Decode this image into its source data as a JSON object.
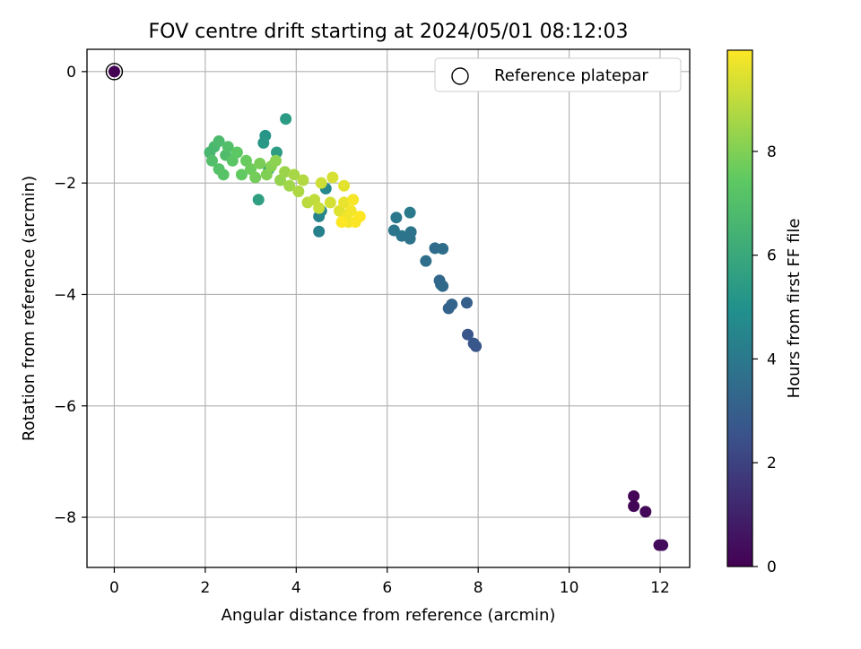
{
  "chart_data": {
    "type": "scatter",
    "title": "FOV centre drift starting at 2024/05/01 08:12:03",
    "xlabel": "Angular distance from reference (arcmin)",
    "ylabel": "Rotation from reference (arcmin)",
    "xlim": [
      -0.6,
      12.65
    ],
    "ylim": [
      -8.9,
      0.4
    ],
    "xticks": [
      0,
      2,
      4,
      6,
      8,
      10,
      12
    ],
    "yticks": [
      0,
      -2,
      -4,
      -6,
      -8
    ],
    "xtick_labels": [
      "0",
      "2",
      "4",
      "6",
      "8",
      "10",
      "12"
    ],
    "ytick_labels": [
      "0",
      "−2",
      "−4",
      "−6",
      "−8"
    ],
    "grid": true,
    "legend": {
      "position": "top-right",
      "entries": [
        {
          "label": "Reference platepar",
          "marker": "hollow-circle"
        }
      ]
    },
    "colorbar": {
      "label": "Hours from first FF file",
      "range": [
        0,
        9.95
      ],
      "ticks": [
        0,
        2,
        4,
        6,
        8
      ],
      "tick_labels": [
        "0",
        "2",
        "4",
        "6",
        "8"
      ],
      "colormap": "viridis",
      "colormap_stops": [
        "#440154",
        "#3b528b",
        "#21918c",
        "#5ec962",
        "#fde725"
      ]
    },
    "reference_point": {
      "x": 0,
      "y": 0,
      "hours": 0
    },
    "series": [
      {
        "points": [
          [
            0,
            0,
            0
          ],
          [
            11.42,
            -7.62,
            0.1
          ],
          [
            11.42,
            -7.8,
            0.15
          ],
          [
            11.68,
            -7.9,
            0.2
          ],
          [
            11.98,
            -8.5,
            0.25
          ],
          [
            12.05,
            -8.5,
            0.3
          ],
          [
            7.77,
            -4.72,
            2.6
          ],
          [
            7.9,
            -4.88,
            2.65
          ],
          [
            7.95,
            -4.93,
            2.7
          ],
          [
            7.75,
            -4.15,
            3.0
          ],
          [
            7.35,
            -4.25,
            3.1
          ],
          [
            7.42,
            -4.18,
            3.15
          ],
          [
            7.15,
            -3.75,
            3.3
          ],
          [
            7.22,
            -3.85,
            3.35
          ],
          [
            7.18,
            -3.82,
            3.4
          ],
          [
            7.05,
            -3.17,
            3.5
          ],
          [
            7.22,
            -3.18,
            3.55
          ],
          [
            6.85,
            -3.4,
            3.65
          ],
          [
            6.5,
            -3.0,
            3.75
          ],
          [
            6.52,
            -2.88,
            3.8
          ],
          [
            6.32,
            -2.95,
            3.85
          ],
          [
            6.15,
            -2.85,
            3.9
          ],
          [
            6.2,
            -2.62,
            4.0
          ],
          [
            6.5,
            -2.53,
            4.05
          ],
          [
            4.5,
            -2.87,
            4.3
          ],
          [
            4.5,
            -2.6,
            4.4
          ],
          [
            4.55,
            -2.5,
            4.5
          ],
          [
            4.65,
            -2.1,
            4.6
          ],
          [
            3.32,
            -1.15,
            5.2
          ],
          [
            3.28,
            -1.28,
            5.3
          ],
          [
            3.77,
            -0.85,
            5.4
          ],
          [
            3.57,
            -1.45,
            5.5
          ],
          [
            3.17,
            -2.3,
            5.6
          ],
          [
            3.4,
            -1.75,
            5.8
          ],
          [
            2.1,
            -1.45,
            6.6
          ],
          [
            2.2,
            -1.35,
            6.7
          ],
          [
            2.3,
            -1.25,
            6.8
          ],
          [
            2.45,
            -1.5,
            6.9
          ],
          [
            2.5,
            -1.35,
            7.0
          ],
          [
            2.15,
            -1.6,
            7.0
          ],
          [
            2.3,
            -1.75,
            7.1
          ],
          [
            2.4,
            -1.85,
            7.2
          ],
          [
            2.6,
            -1.6,
            7.3
          ],
          [
            2.7,
            -1.45,
            7.4
          ],
          [
            2.8,
            -1.85,
            7.5
          ],
          [
            2.9,
            -1.6,
            7.6
          ],
          [
            3.0,
            -1.75,
            7.7
          ],
          [
            3.1,
            -1.9,
            7.8
          ],
          [
            3.2,
            -1.65,
            7.9
          ],
          [
            3.35,
            -1.85,
            8.0
          ],
          [
            3.45,
            -1.7,
            8.1
          ],
          [
            3.55,
            -1.6,
            8.2
          ],
          [
            3.65,
            -1.95,
            8.3
          ],
          [
            3.75,
            -1.8,
            8.4
          ],
          [
            3.85,
            -2.05,
            8.5
          ],
          [
            3.95,
            -1.85,
            8.6
          ],
          [
            4.05,
            -2.15,
            8.7
          ],
          [
            4.15,
            -1.95,
            8.8
          ],
          [
            4.25,
            -2.35,
            8.9
          ],
          [
            4.4,
            -2.3,
            9.0
          ],
          [
            4.5,
            -2.45,
            9.1
          ],
          [
            4.55,
            -2.0,
            9.2
          ],
          [
            4.75,
            -2.35,
            9.3
          ],
          [
            4.8,
            -1.9,
            9.35
          ],
          [
            4.95,
            -2.5,
            9.5
          ],
          [
            5.05,
            -2.05,
            9.55
          ],
          [
            5.05,
            -2.35,
            9.6
          ],
          [
            5.1,
            -2.6,
            9.7
          ],
          [
            5.15,
            -2.7,
            9.75
          ],
          [
            5.2,
            -2.5,
            9.8
          ],
          [
            5.25,
            -2.3,
            9.85
          ],
          [
            5.3,
            -2.7,
            9.9
          ],
          [
            5.4,
            -2.6,
            9.95
          ],
          [
            5.0,
            -2.7,
            9.95
          ]
        ]
      }
    ]
  }
}
